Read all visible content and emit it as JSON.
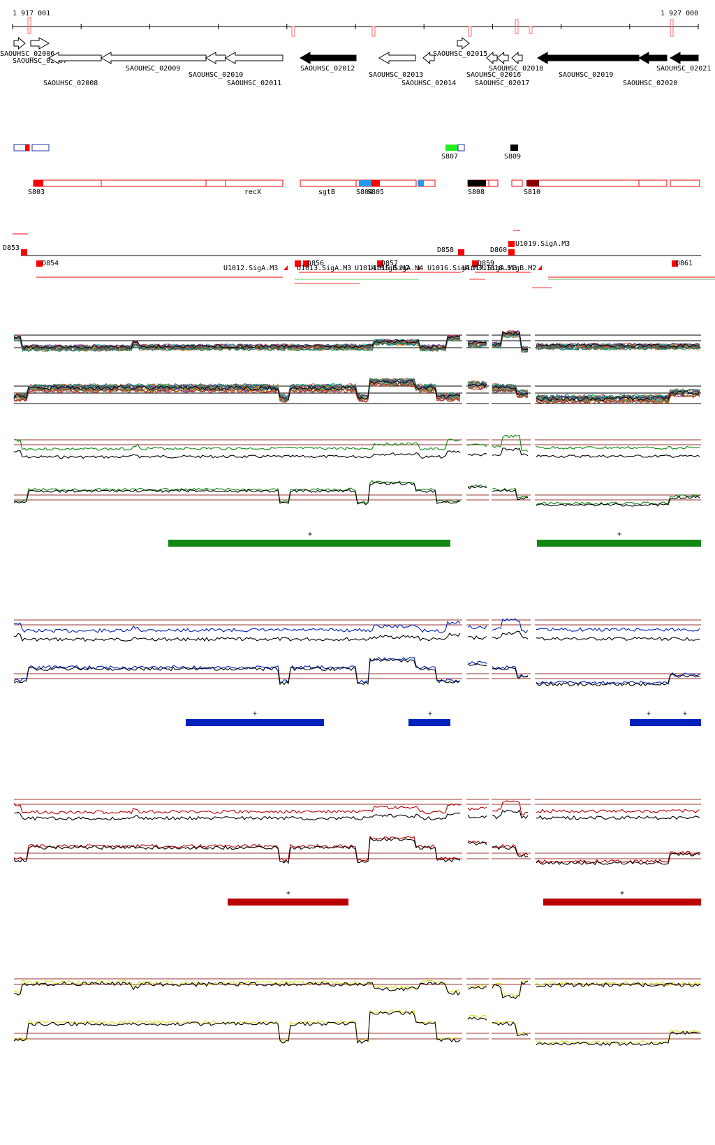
{
  "coords": {
    "start": "1 917 001",
    "end": "1 927 000"
  },
  "genes": [
    {
      "name": "SAOUHSC_02006"
    },
    {
      "name": "SAOUHSC_02007"
    },
    {
      "name": "SAOUHSC_02008"
    },
    {
      "name": "SAOUHSC_02009"
    },
    {
      "name": "SAOUHSC_02010"
    },
    {
      "name": "SAOUHSC_02011"
    },
    {
      "name": "SAOUHSC_02012"
    },
    {
      "name": "SAOUHSC_02013"
    },
    {
      "name": "SAOUHSC_02014"
    },
    {
      "name": "SAOUHSC_02015"
    },
    {
      "name": "SAOUHSC_02016"
    },
    {
      "name": "SAOUHSC_02017"
    },
    {
      "name": "SAOUHSC_02018"
    },
    {
      "name": "SAOUHSC_02019"
    },
    {
      "name": "SAOUHSC_02020"
    },
    {
      "name": "SAOUHSC_02021"
    }
  ],
  "segments_top": [
    "S807",
    "S809"
  ],
  "segments_main": [
    "S803",
    "recX",
    "sgtB",
    "S804",
    "S805",
    "S808",
    "S810"
  ],
  "d_labels": [
    "D853",
    "D854",
    "D856",
    "D857",
    "D858",
    "D859",
    "D860",
    "D861"
  ],
  "u_labels": [
    "U1012.SigA.M3",
    "U1013.SigA.M3",
    "U1014.SigB.M2",
    "U1015.SigA.M4",
    "U1016.SigA.M3",
    "U1017.SigA.M3",
    "U1018.SigB.M2",
    "U1019.SigA.M3"
  ],
  "marks": {
    "plus": "+"
  },
  "colors": {
    "green": "#118811",
    "blue": "#0022bb",
    "red": "#bb0000",
    "yellow": "#dddd22",
    "seg": "#ff0000",
    "ref": "#993333"
  }
}
